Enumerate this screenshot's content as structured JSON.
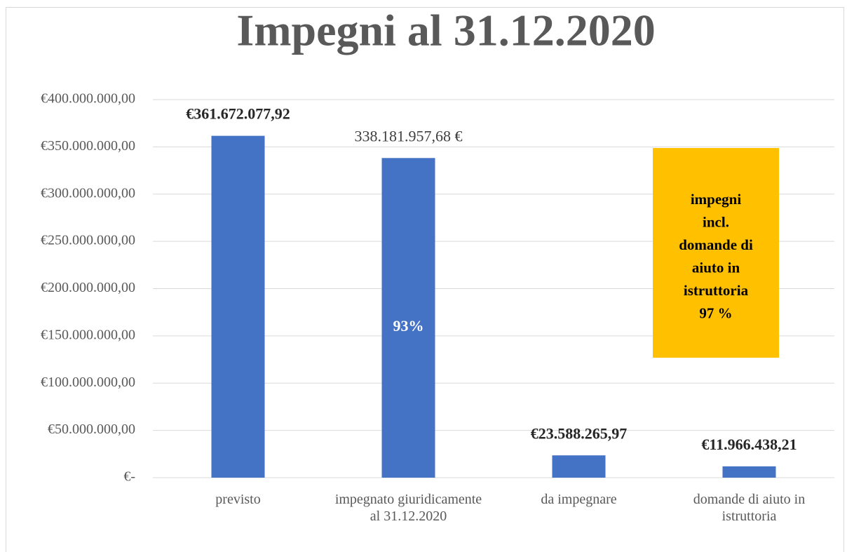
{
  "chart_data": {
    "type": "bar",
    "title": "Impegni  al 31.12.2020",
    "categories": [
      "previsto",
      "impegnato giuridicamente al 31.12.2020",
      "da impegnare",
      "domande di aiuto in istruttoria"
    ],
    "values": [
      361672077.92,
      338181957.68,
      23588265.97,
      11966438.21
    ],
    "value_labels": [
      "€361.672.077,92",
      "338.181.957,68 €",
      "€23.588.265,97",
      "€11.966.438,21"
    ],
    "value_label_bold": [
      true,
      false,
      true,
      true
    ],
    "color": "#4472c4",
    "ylim": [
      0,
      400000000
    ],
    "yticks": [
      {
        "value": 0,
        "label": "€-"
      },
      {
        "value": 50000000,
        "label": "€50.000.000,00"
      },
      {
        "value": 100000000,
        "label": "€100.000.000,00"
      },
      {
        "value": 150000000,
        "label": "€150.000.000,00"
      },
      {
        "value": 200000000,
        "label": "€200.000.000,00"
      },
      {
        "value": 250000000,
        "label": "€250.000.000,00"
      },
      {
        "value": 300000000,
        "label": "€300.000.000,00"
      },
      {
        "value": 350000000,
        "label": "€350.000.000,00"
      },
      {
        "value": 400000000,
        "label": "€400.000.000,00"
      }
    ],
    "grid": true,
    "bar_annotation": "93%",
    "box_annotation": {
      "color": "#ffc000",
      "lines": [
        "impegni",
        "incl.",
        "domande di",
        "aiuto in",
        "istruttoria",
        "97 %"
      ]
    }
  }
}
